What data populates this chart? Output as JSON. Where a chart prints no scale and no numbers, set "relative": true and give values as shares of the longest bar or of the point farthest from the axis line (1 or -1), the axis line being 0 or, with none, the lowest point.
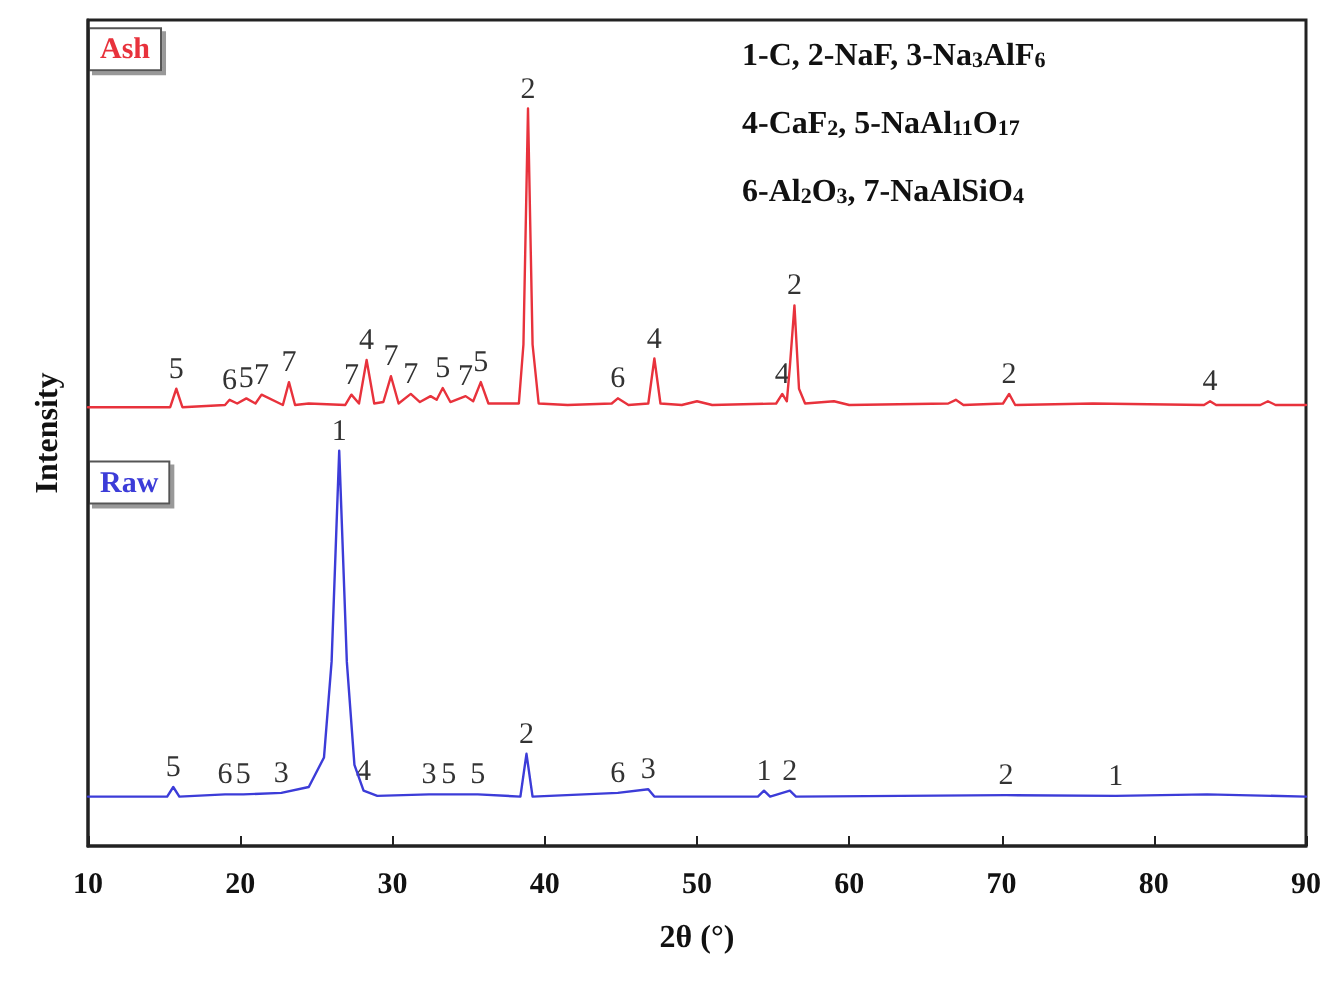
{
  "chart_data": {
    "type": "line",
    "relative": true,
    "xlabel": "2θ (°)",
    "ylabel": "Intensity",
    "xlim": [
      10,
      90
    ],
    "xticks": [
      10,
      20,
      30,
      40,
      50,
      60,
      70,
      80,
      90
    ],
    "tick_labels": "x",
    "grid": false,
    "legend": false,
    "marker": "none",
    "line_style": "solid",
    "series": [
      {
        "name": "Ash",
        "color": "#e8323c",
        "x": [
          10,
          15.4,
          15.8,
          16.2,
          19.0,
          19.3,
          19.8,
          20.4,
          21.0,
          21.4,
          22.8,
          23.2,
          23.6,
          24.5,
          26.9,
          27.3,
          27.8,
          28.3,
          28.8,
          29.4,
          29.9,
          30.4,
          31.2,
          31.8,
          32.5,
          32.9,
          33.3,
          33.8,
          34.8,
          35.3,
          35.8,
          36.3,
          38.3,
          38.6,
          38.9,
          39.2,
          39.6,
          41.5,
          44.4,
          44.8,
          45.5,
          46.8,
          47.2,
          47.6,
          49.0,
          50.0,
          51.0,
          55.2,
          55.6,
          55.9,
          56.1,
          56.4,
          56.7,
          57.1,
          59.0,
          60.0,
          66.5,
          67.0,
          67.5,
          70.1,
          70.5,
          70.9,
          76.0,
          83.3,
          83.7,
          84.1,
          87.0,
          87.5,
          88.0,
          90
        ],
        "values": [
          0.595,
          0.595,
          0.62,
          0.595,
          0.598,
          0.605,
          0.6,
          0.607,
          0.6,
          0.612,
          0.598,
          0.629,
          0.598,
          0.6,
          0.598,
          0.612,
          0.6,
          0.659,
          0.6,
          0.602,
          0.637,
          0.6,
          0.613,
          0.602,
          0.61,
          0.605,
          0.621,
          0.602,
          0.61,
          0.603,
          0.629,
          0.6,
          0.6,
          0.68,
          1,
          0.68,
          0.6,
          0.598,
          0.6,
          0.607,
          0.598,
          0.6,
          0.661,
          0.6,
          0.598,
          0.603,
          0.598,
          0.6,
          0.613,
          0.603,
          0.65,
          0.733,
          0.62,
          0.6,
          0.603,
          0.598,
          0.6,
          0.605,
          0.598,
          0.6,
          0.613,
          0.598,
          0.6,
          0.598,
          0.603,
          0.598,
          0.598,
          0.603,
          0.598,
          0.598
        ]
      },
      {
        "name": "Raw",
        "color": "#3c3cd8",
        "x": [
          10,
          15.2,
          15.6,
          16.0,
          19.0,
          20.2,
          22.7,
          24.5,
          25.5,
          26.0,
          26.5,
          27.0,
          27.5,
          28.1,
          29.0,
          32.4,
          33.7,
          35.6,
          38.4,
          38.8,
          39.2,
          44.8,
          46.8,
          47.2,
          54.0,
          54.4,
          54.8,
          56.1,
          56.5,
          70.3,
          77.5,
          83.5,
          90
        ],
        "values": [
          0.067,
          0.067,
          0.08,
          0.067,
          0.07,
          0.07,
          0.072,
          0.08,
          0.12,
          0.25,
          0.536,
          0.25,
          0.11,
          0.075,
          0.068,
          0.07,
          0.07,
          0.07,
          0.067,
          0.125,
          0.067,
          0.072,
          0.077,
          0.067,
          0.067,
          0.075,
          0.067,
          0.075,
          0.067,
          0.069,
          0.068,
          0.07,
          0.067
        ]
      }
    ],
    "annotations": [
      "1-C, 2-NaF, 3-Na$_{3}$AlF$_{6}$",
      "4-CaF$_{2}$, 5-NaAl$_{11}$O$_{17}$",
      "6-Al$_{2}$O$_{3}$, 7-NaAlSiO$_{4}$",
      {
        "text": "5",
        "x": 15.8,
        "y": 0.62
      },
      {
        "text": "6",
        "x": 19.3,
        "y": 0.605
      },
      {
        "text": "5",
        "x": 20.4,
        "y": 0.607
      },
      {
        "text": "7",
        "x": 21.4,
        "y": 0.612
      },
      {
        "text": "7",
        "x": 23.2,
        "y": 0.629
      },
      {
        "text": "7",
        "x": 27.3,
        "y": 0.612
      },
      {
        "text": "4",
        "x": 28.3,
        "y": 0.659
      },
      {
        "text": "7",
        "x": 29.9,
        "y": 0.637
      },
      {
        "text": "7",
        "x": 31.2,
        "y": 0.613
      },
      {
        "text": "5",
        "x": 33.3,
        "y": 0.621
      },
      {
        "text": "7",
        "x": 34.8,
        "y": 0.61
      },
      {
        "text": "5",
        "x": 35.8,
        "y": 0.629
      },
      {
        "text": "2",
        "x": 38.9,
        "y": 1
      },
      {
        "text": "6",
        "x": 44.8,
        "y": 0.607
      },
      {
        "text": "4",
        "x": 47.2,
        "y": 0.661
      },
      {
        "text": "4",
        "x": 55.6,
        "y": 0.613
      },
      {
        "text": "2",
        "x": 56.4,
        "y": 0.733
      },
      {
        "text": "2",
        "x": 70.5,
        "y": 0.613
      },
      {
        "text": "4",
        "x": 83.7,
        "y": 0.603
      },
      {
        "text": "5",
        "x": 15.6,
        "y": 0.08
      },
      {
        "text": "6",
        "x": 19.0,
        "y": 0.07
      },
      {
        "text": "5",
        "x": 20.2,
        "y": 0.07
      },
      {
        "text": "3",
        "x": 22.7,
        "y": 0.072
      },
      {
        "text": "1",
        "x": 26.5,
        "y": 0.536
      },
      {
        "text": "4",
        "x": 28.1,
        "y": 0.075
      },
      {
        "text": "3",
        "x": 32.4,
        "y": 0.07
      },
      {
        "text": "5",
        "x": 33.7,
        "y": 0.07
      },
      {
        "text": "5",
        "x": 35.6,
        "y": 0.07
      },
      {
        "text": "2",
        "x": 38.8,
        "y": 0.125
      },
      {
        "text": "6",
        "x": 44.8,
        "y": 0.072
      },
      {
        "text": "3",
        "x": 46.8,
        "y": 0.077
      },
      {
        "text": "1",
        "x": 54.4,
        "y": 0.075
      },
      {
        "text": "2",
        "x": 56.1,
        "y": 0.075
      },
      {
        "text": "2",
        "x": 70.3,
        "y": 0.069
      },
      {
        "text": "1",
        "x": 77.5,
        "y": 0.068
      }
    ]
  }
}
